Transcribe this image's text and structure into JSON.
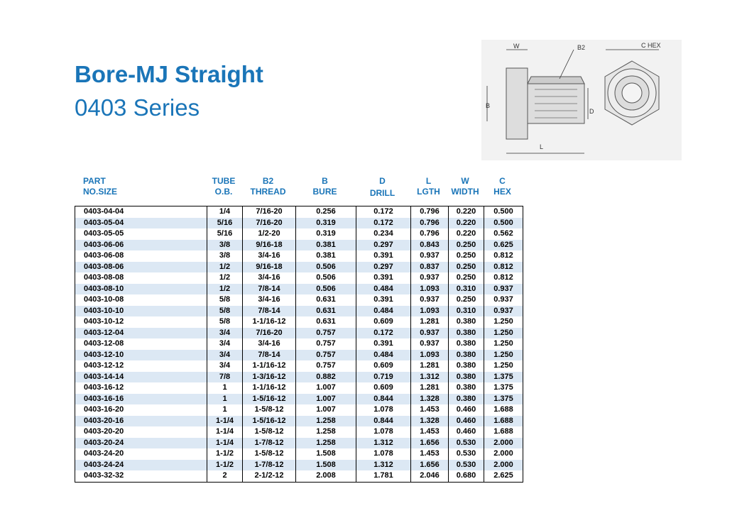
{
  "header": {
    "title": "Bore-MJ Straight",
    "subtitle": "0403 Series"
  },
  "diagram": {
    "labels": {
      "w": "W",
      "b2": "B2",
      "chex": "C HEX",
      "b": "B",
      "d": "D",
      "l": "L"
    }
  },
  "table": {
    "columns": [
      [
        "PART",
        "NO.SIZE"
      ],
      [
        "TUBE",
        "O.B."
      ],
      [
        "B2",
        "THREAD"
      ],
      [
        "B",
        "BURE"
      ],
      [
        "D",
        "DRILL"
      ],
      [
        "L",
        "LGTH"
      ],
      [
        "W",
        "WIDTH"
      ],
      [
        "C",
        "HEX"
      ]
    ],
    "rows": [
      [
        "0403-04-04",
        "1/4",
        "7/16-20",
        "0.256",
        "0.172",
        "0.796",
        "0.220",
        "0.500"
      ],
      [
        "0403-05-04",
        "5/16",
        "7/16-20",
        "0.319",
        "0.172",
        "0.796",
        "0.220",
        "0.500"
      ],
      [
        "0403-05-05",
        "5/16",
        "1/2-20",
        "0.319",
        "0.234",
        "0.796",
        "0.220",
        "0.562"
      ],
      [
        "0403-06-06",
        "3/8",
        "9/16-18",
        "0.381",
        "0.297",
        "0.843",
        "0.250",
        "0.625"
      ],
      [
        "0403-06-08",
        "3/8",
        "3/4-16",
        "0.381",
        "0.391",
        "0.937",
        "0.250",
        "0.812"
      ],
      [
        "0403-08-06",
        "1/2",
        "9/16-18",
        "0.506",
        "0.297",
        "0.837",
        "0.250",
        "0.812"
      ],
      [
        "0403-08-08",
        "1/2",
        "3/4-16",
        "0.506",
        "0.391",
        "0.937",
        "0.250",
        "0.812"
      ],
      [
        "0403-08-10",
        "1/2",
        "7/8-14",
        "0.506",
        "0.484",
        "1.093",
        "0.310",
        "0.937"
      ],
      [
        "0403-10-08",
        "5/8",
        "3/4-16",
        "0.631",
        "0.391",
        "0.937",
        "0.250",
        "0.937"
      ],
      [
        "0403-10-10",
        "5/8",
        "7/8-14",
        "0.631",
        "0.484",
        "1.093",
        "0.310",
        "0.937"
      ],
      [
        "0403-10-12",
        "5/8",
        "1-1/16-12",
        "0.631",
        "0.609",
        "1.281",
        "0.380",
        "1.250"
      ],
      [
        "0403-12-04",
        "3/4",
        "7/16-20",
        "0.757",
        "0.172",
        "0.937",
        "0.380",
        "1.250"
      ],
      [
        "0403-12-08",
        "3/4",
        "3/4-16",
        "0.757",
        "0.391",
        "0.937",
        "0.380",
        "1.250"
      ],
      [
        "0403-12-10",
        "3/4",
        "7/8-14",
        "0.757",
        "0.484",
        "1.093",
        "0.380",
        "1.250"
      ],
      [
        "0403-12-12",
        "3/4",
        "1-1/16-12",
        "0.757",
        "0.609",
        "1.281",
        "0.380",
        "1.250"
      ],
      [
        "0403-14-14",
        "7/8",
        "1-3/16-12",
        "0.882",
        "0.719",
        "1.312",
        "0.380",
        "1.375"
      ],
      [
        "0403-16-12",
        "1",
        "1-1/16-12",
        "1.007",
        "0.609",
        "1.281",
        "0.380",
        "1.375"
      ],
      [
        "0403-16-16",
        "1",
        "1-5/16-12",
        "1.007",
        "0.844",
        "1.328",
        "0.380",
        "1.375"
      ],
      [
        "0403-16-20",
        "1",
        "1-5/8-12",
        "1.007",
        "1.078",
        "1.453",
        "0.460",
        "1.688"
      ],
      [
        "0403-20-16",
        "1-1/4",
        "1-5/16-12",
        "1.258",
        "0.844",
        "1.328",
        "0.460",
        "1.688"
      ],
      [
        "0403-20-20",
        "1-1/4",
        "1-5/8-12",
        "1.258",
        "1.078",
        "1.453",
        "0.460",
        "1.688"
      ],
      [
        "0403-20-24",
        "1-1/4",
        "1-7/8-12",
        "1.258",
        "1.312",
        "1.656",
        "0.530",
        "2.000"
      ],
      [
        "0403-24-20",
        "1-1/2",
        "1-5/8-12",
        "1.508",
        "1.078",
        "1.453",
        "0.530",
        "2.000"
      ],
      [
        "0403-24-24",
        "1-1/2",
        "1-7/8-12",
        "1.508",
        "1.312",
        "1.656",
        "0.530",
        "2.000"
      ],
      [
        "0403-32-32",
        "2",
        "2-1/2-12",
        "2.008",
        "1.781",
        "2.046",
        "0.680",
        "2.625"
      ]
    ]
  }
}
